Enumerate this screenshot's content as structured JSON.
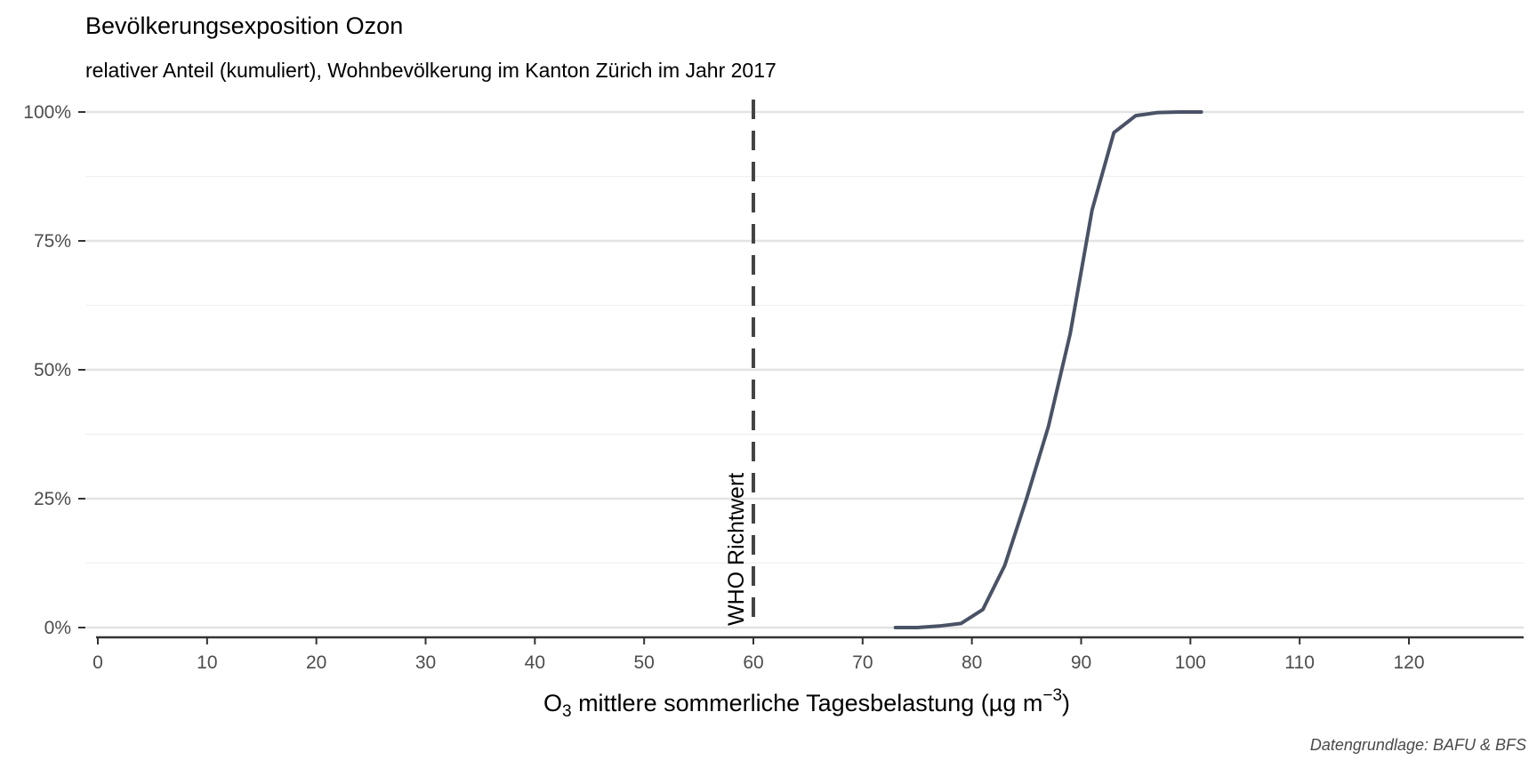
{
  "chart_data": {
    "type": "line",
    "title": "Bevölkerungsexposition Ozon",
    "subtitle": "relativer Anteil (kumuliert), Wohnbevölkerung im Kanton Zürich im Jahr 2017",
    "xlabel_main": "O",
    "xlabel_sub": "3",
    "xlabel_rest": " mittlere sommerliche Tagesbelastung (µg m",
    "xlabel_sup": "−3",
    "xlabel_end": ")",
    "ylabel": "",
    "caption": "Datengrundlage: BAFU & BFS",
    "xlim": [
      0,
      120
    ],
    "ylim": [
      0,
      1
    ],
    "x_ticks": [
      0,
      10,
      20,
      30,
      40,
      50,
      60,
      70,
      80,
      90,
      100,
      110,
      120
    ],
    "y_ticks": [
      0,
      0.25,
      0.5,
      0.75,
      1
    ],
    "y_tick_labels": [
      "0%",
      "25%",
      "50%",
      "75%",
      "100%"
    ],
    "grid": true,
    "line_color": "#4a5266",
    "reference_line": {
      "x": 60,
      "label": "WHO Richtwert",
      "style": "dashed",
      "color": "#444444"
    },
    "series": [
      {
        "x": [
          73,
          75,
          77,
          79,
          81,
          83,
          85,
          87,
          89,
          91,
          93,
          95,
          97,
          99,
          101
        ],
        "y": [
          0.0,
          0.0,
          0.003,
          0.008,
          0.035,
          0.12,
          0.25,
          0.39,
          0.57,
          0.81,
          0.96,
          0.993,
          0.999,
          1.0,
          1.0
        ]
      }
    ]
  }
}
